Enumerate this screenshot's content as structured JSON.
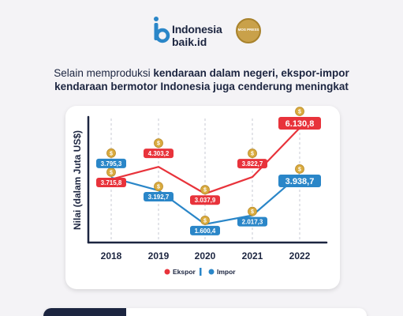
{
  "brand": {
    "name": "Indonesia",
    "sub": "baik.id",
    "seal_text": "MOS PRESS"
  },
  "headline": {
    "line1_normal": "Selain memproduksi ",
    "line1_bold": "kendaraan dalam negeri, ekspor-impor",
    "line2_bold": "kendaraan bermotor Indonesia juga cenderung meningkat"
  },
  "colors": {
    "ekspor": "#e8333b",
    "impor": "#2a86c8",
    "axis": "#1c2540",
    "coin": "#d9ab3f"
  },
  "chart_data": {
    "type": "line",
    "categories": [
      "2018",
      "2019",
      "2020",
      "2021",
      "2022"
    ],
    "ylabel": "Nilai (dalam Juta US$)",
    "grid": "vertical-dashed",
    "legend_placement": "bottom-center",
    "series": [
      {
        "name": "Ekspor",
        "values": [
          3715.8,
          4303.2,
          3037.9,
          3822.7,
          6130.8
        ],
        "labels": [
          "3.715,8",
          "4.303,2",
          "3.037,9",
          "3.822,7",
          "6.130,8"
        ]
      },
      {
        "name": "Impor",
        "values": [
          3795.3,
          3192.7,
          1600.4,
          2017.3,
          3938.7
        ],
        "labels": [
          "3.795,3",
          "3.192,7",
          "1.600,4",
          "2.017,3",
          "3.938,7"
        ]
      }
    ]
  }
}
